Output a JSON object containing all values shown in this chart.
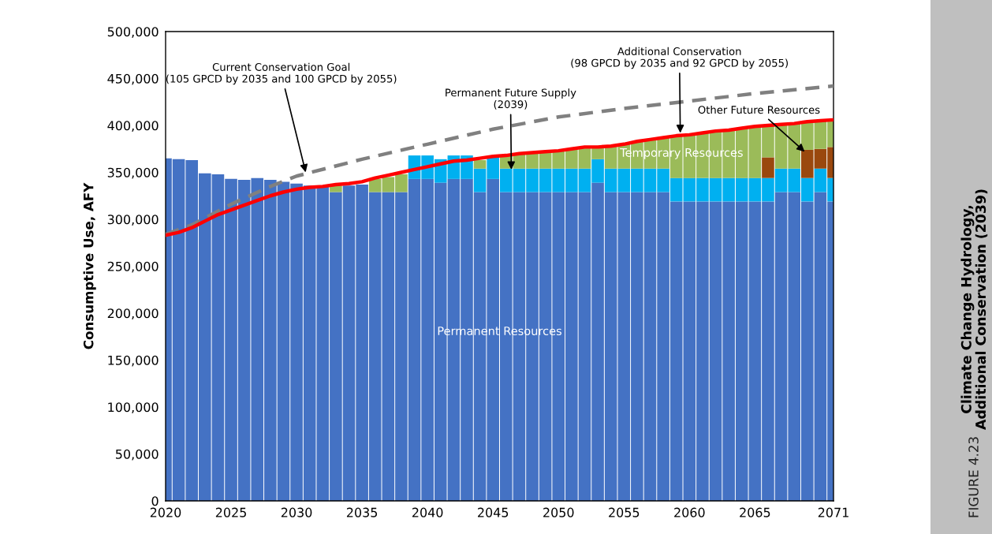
{
  "chart_data": {
    "type": "bar",
    "stacked": true,
    "title": "Climate Change Hydrology,\nAdditional Conservation (2039)",
    "ylabel": "Consumptive Use, AFY",
    "x": [
      2020,
      2021,
      2022,
      2023,
      2024,
      2025,
      2026,
      2027,
      2028,
      2029,
      2030,
      2031,
      2032,
      2033,
      2034,
      2035,
      2036,
      2037,
      2038,
      2039,
      2040,
      2041,
      2042,
      2043,
      2044,
      2045,
      2046,
      2047,
      2048,
      2049,
      2050,
      2051,
      2052,
      2053,
      2054,
      2055,
      2056,
      2057,
      2058,
      2059,
      2060,
      2061,
      2062,
      2063,
      2064,
      2065,
      2066,
      2067,
      2068,
      2069,
      2070,
      2071
    ],
    "xlim": [
      2020,
      2071
    ],
    "xticks": [
      2020,
      2025,
      2030,
      2035,
      2040,
      2045,
      2050,
      2055,
      2060,
      2065,
      2071
    ],
    "ylim": [
      0,
      500000
    ],
    "yticks": [
      {
        "value": 0,
        "label": "0"
      },
      {
        "value": 50000,
        "label": "50,000"
      },
      {
        "value": 100000,
        "label": "100,000"
      },
      {
        "value": 150000,
        "label": "150,000"
      },
      {
        "value": 200000,
        "label": "200,000"
      },
      {
        "value": 250000,
        "label": "250,000"
      },
      {
        "value": 300000,
        "label": "300,000"
      },
      {
        "value": 350000,
        "label": "350,000"
      },
      {
        "value": 400000,
        "label": "400,000"
      },
      {
        "value": 450000,
        "label": "450,000"
      },
      {
        "value": 500000,
        "label": "500,000"
      }
    ],
    "grid": false,
    "legend": false,
    "series": [
      {
        "color": "#4472c4",
        "values": [
          365000,
          364000,
          363000,
          349000,
          348000,
          343000,
          342000,
          344000,
          342000,
          340000,
          338000,
          336000,
          335000,
          329000,
          336000,
          337000,
          329000,
          329000,
          329000,
          343000,
          343000,
          339000,
          343000,
          343000,
          329000,
          343000,
          329000,
          329000,
          329000,
          329000,
          329000,
          329000,
          329000,
          339000,
          329000,
          329000,
          329000,
          329000,
          329000,
          319000,
          319000,
          319000,
          319000,
          319000,
          319000,
          319000,
          319000,
          329000,
          329000,
          319000,
          329000,
          319000
        ]
      },
      {
        "color": "#00b0f0",
        "values": [
          null,
          null,
          null,
          null,
          null,
          null,
          null,
          null,
          null,
          null,
          null,
          null,
          null,
          null,
          null,
          null,
          null,
          null,
          null,
          25000,
          25000,
          25000,
          25000,
          25000,
          25000,
          24000,
          25000,
          25000,
          25000,
          25000,
          25000,
          25000,
          25000,
          25000,
          25000,
          25000,
          25000,
          25000,
          25000,
          25000,
          25000,
          25000,
          25000,
          25000,
          25000,
          25000,
          25000,
          25000,
          25000,
          25000,
          25000,
          25000
        ]
      },
      {
        "color": "#9a480e",
        "values": [
          null,
          null,
          null,
          null,
          null,
          null,
          null,
          null,
          null,
          null,
          null,
          null,
          null,
          null,
          null,
          null,
          null,
          null,
          null,
          null,
          null,
          null,
          null,
          null,
          null,
          null,
          null,
          null,
          null,
          null,
          null,
          null,
          null,
          null,
          null,
          null,
          null,
          null,
          null,
          null,
          null,
          null,
          null,
          null,
          null,
          null,
          22000,
          null,
          null,
          30000,
          21000,
          33000
        ]
      },
      {
        "color": "#9bbb59",
        "values": [
          null,
          null,
          null,
          null,
          null,
          null,
          null,
          null,
          null,
          null,
          null,
          null,
          null,
          7000,
          null,
          null,
          14000,
          16000,
          19000,
          null,
          null,
          null,
          null,
          null,
          9000,
          null,
          14000,
          16000,
          17000,
          18000,
          19000,
          21000,
          23000,
          13000,
          24000,
          26000,
          29000,
          31000,
          33000,
          45000,
          46000,
          48000,
          50000,
          51000,
          53000,
          55000,
          34000,
          47000,
          48000,
          30000,
          30000,
          29000
        ]
      },
      {
        "type": "line",
        "color": "#808080",
        "line_style": "dashed",
        "x": [
          2020,
          2022,
          2025,
          2028,
          2030,
          2035,
          2040,
          2045,
          2050,
          2055,
          2060,
          2065,
          2071
        ],
        "values": [
          284000,
          294000,
          316000,
          335000,
          346000,
          364000,
          380000,
          396000,
          409000,
          418000,
          426000,
          434000,
          442000
        ]
      },
      {
        "type": "line",
        "color": "#ff0000",
        "line_style": "solid",
        "x": [
          2020,
          2021,
          2022,
          2023,
          2024,
          2025,
          2026,
          2027,
          2028,
          2029,
          2030,
          2031,
          2032,
          2033,
          2034,
          2035,
          2036,
          2037,
          2038,
          2039,
          2040,
          2041,
          2042,
          2043,
          2044,
          2045,
          2046,
          2047,
          2048,
          2049,
          2050,
          2051,
          2052,
          2053,
          2054,
          2055,
          2056,
          2057,
          2058,
          2059,
          2060,
          2061,
          2062,
          2063,
          2064,
          2065,
          2066,
          2067,
          2068,
          2069,
          2070,
          2071
        ],
        "values": [
          283000,
          286000,
          291000,
          298000,
          305000,
          310000,
          315000,
          320000,
          325000,
          329000,
          332000,
          334000,
          335000,
          337000,
          338000,
          340000,
          344000,
          347000,
          350000,
          353000,
          356000,
          359000,
          362000,
          363000,
          365000,
          367000,
          368000,
          370000,
          371000,
          372000,
          373000,
          375000,
          377000,
          377000,
          378000,
          380000,
          383000,
          385000,
          387000,
          389000,
          390000,
          392000,
          394000,
          395000,
          397000,
          399000,
          400000,
          401000,
          402000,
          404000,
          405000,
          406000
        ]
      }
    ],
    "annotations": [
      {
        "text": "Current Conservation Goal\n(105 GPCD by 2035 and 100 GPCD by 2055)",
        "x": 2030.7,
        "y": 350000
      },
      {
        "text": "Permanent Future Supply\n(2039)",
        "x": 2046.4,
        "y": 353000
      },
      {
        "text": "Additional Conservation\n(98 GPCD by 2035 and 92 GPCD by 2055)",
        "x": 2059.3,
        "y": 392000
      },
      {
        "text": "Other Future Resources",
        "x": 2068.8,
        "y": 372000
      },
      {
        "text": "Temporary Resources",
        "x": 2059.4,
        "y": 370000
      },
      "Permanent Resources",
      "FIGURE 4.23"
    ]
  }
}
